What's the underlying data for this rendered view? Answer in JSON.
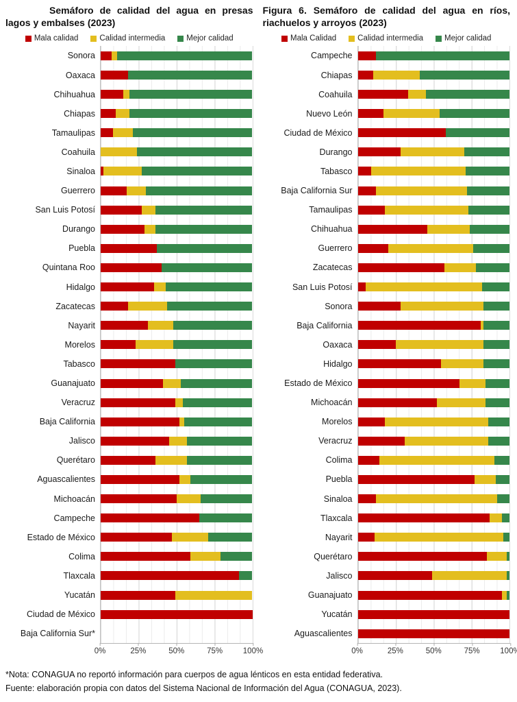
{
  "footer": {
    "note": "*Nota: CONAGUA no reportó información para cuerpos de agua lénticos en esta entidad federativa.",
    "source": "Fuente: elaboración propia con datos del Sistema Nacional de Información del Agua (CONAGUA, 2023)."
  },
  "chart_data": [
    {
      "type": "bar",
      "stacked": true,
      "orientation": "horizontal",
      "grid": true,
      "legend_position": "top",
      "title": "Semáforo de calidad del agua en presas lagos y embalses (2023)",
      "legend": [
        "Mala calidad",
        "Calidad intermedia",
        "Mejor calidad"
      ],
      "colors": [
        "#C00000",
        "#E3BE1F",
        "#36874B"
      ],
      "x_ticks": [
        "0%",
        "25%",
        "50%",
        "75%",
        "100%"
      ],
      "xlim": [
        0,
        100
      ],
      "xlabel": "",
      "ylabel": "",
      "categories": [
        "Sonora",
        "Oaxaca",
        "Chihuahua",
        "Chiapas",
        "Tamaulipas",
        "Coahuila",
        "Sinaloa",
        "Guerrero",
        "San Luis Potosí",
        "Durango",
        "Puebla",
        "Quintana Roo",
        "Hidalgo",
        "Zacatecas",
        "Nayarit",
        "Morelos",
        "Tabasco",
        "Guanajuato",
        "Veracruz",
        "Baja California",
        "Jalisco",
        "Querétaro",
        "Aguascalientes",
        "Michoacán",
        "Campeche",
        "Estado de México",
        "Colima",
        "Tlaxcala",
        "Yucatán",
        "Ciudad de México",
        "Baja California Sur*"
      ],
      "series": [
        {
          "name": "Mala calidad",
          "values": [
            7,
            18,
            15,
            10,
            8,
            0,
            2,
            17,
            27,
            29,
            37,
            40,
            35,
            18,
            31,
            23,
            49,
            41,
            49,
            52,
            45,
            36,
            52,
            50,
            65,
            47,
            59,
            91,
            49,
            100,
            null
          ]
        },
        {
          "name": "Calidad intermedia",
          "values": [
            4,
            0,
            4,
            9,
            13,
            24,
            25,
            13,
            9,
            7,
            0,
            0,
            8,
            26,
            17,
            25,
            0,
            12,
            5,
            3,
            12,
            21,
            7,
            16,
            0,
            24,
            20,
            0,
            51,
            0,
            null
          ]
        },
        {
          "name": "Mejor calidad",
          "values": [
            89,
            82,
            81,
            81,
            79,
            76,
            73,
            70,
            64,
            64,
            63,
            60,
            57,
            56,
            52,
            52,
            51,
            47,
            46,
            45,
            43,
            43,
            41,
            34,
            35,
            29,
            21,
            9,
            0,
            0,
            null
          ]
        }
      ]
    },
    {
      "type": "bar",
      "stacked": true,
      "orientation": "horizontal",
      "grid": true,
      "legend_position": "top",
      "title": "Figura 6. Semáforo de calidad del agua en ríos, riachuelos y arroyos (2023)",
      "legend": [
        "Mala Calidad",
        "Calidad intermedia",
        "Mejor calidad"
      ],
      "colors": [
        "#C00000",
        "#E3BE1F",
        "#36874B"
      ],
      "x_ticks": [
        "0%",
        "25%",
        "50%",
        "75%",
        "100%"
      ],
      "xlim": [
        0,
        100
      ],
      "xlabel": "",
      "ylabel": "",
      "categories": [
        "Campeche",
        "Chiapas",
        "Coahuila",
        "Nuevo León",
        "Ciudad de México",
        "Durango",
        "Tabasco",
        "Baja California Sur",
        "Tamaulipas",
        "Chihuahua",
        "Guerrero",
        "Zacatecas",
        "San Luis Potosí",
        "Sonora",
        "Baja California",
        "Oaxaca",
        "Hidalgo",
        "Estado de México",
        "Michoacán",
        "Morelos",
        "Veracruz",
        "Colima",
        "Puebla",
        "Sinaloa",
        "Tlaxcala",
        "Nayarit",
        "Querétaro",
        "Jalisco",
        "Guanajuato",
        "Yucatán",
        "Aguascalientes"
      ],
      "series": [
        {
          "name": "Mala Calidad",
          "values": [
            12,
            10,
            33,
            17,
            58,
            28,
            9,
            12,
            18,
            46,
            20,
            57,
            5,
            28,
            81,
            25,
            55,
            67,
            52,
            18,
            31,
            14,
            77,
            12,
            87,
            11,
            85,
            49,
            95,
            100,
            100
          ]
        },
        {
          "name": "Calidad intermedia",
          "values": [
            0,
            31,
            12,
            37,
            0,
            42,
            62,
            60,
            55,
            28,
            56,
            21,
            77,
            55,
            2,
            58,
            28,
            17,
            32,
            68,
            55,
            76,
            14,
            80,
            8,
            85,
            13,
            49,
            3,
            0,
            0
          ]
        },
        {
          "name": "Mejor calidad",
          "values": [
            88,
            59,
            55,
            46,
            42,
            30,
            29,
            28,
            27,
            26,
            24,
            22,
            18,
            17,
            17,
            17,
            17,
            16,
            16,
            14,
            14,
            10,
            9,
            8,
            5,
            4,
            2,
            2,
            2,
            0,
            0
          ]
        }
      ]
    }
  ]
}
